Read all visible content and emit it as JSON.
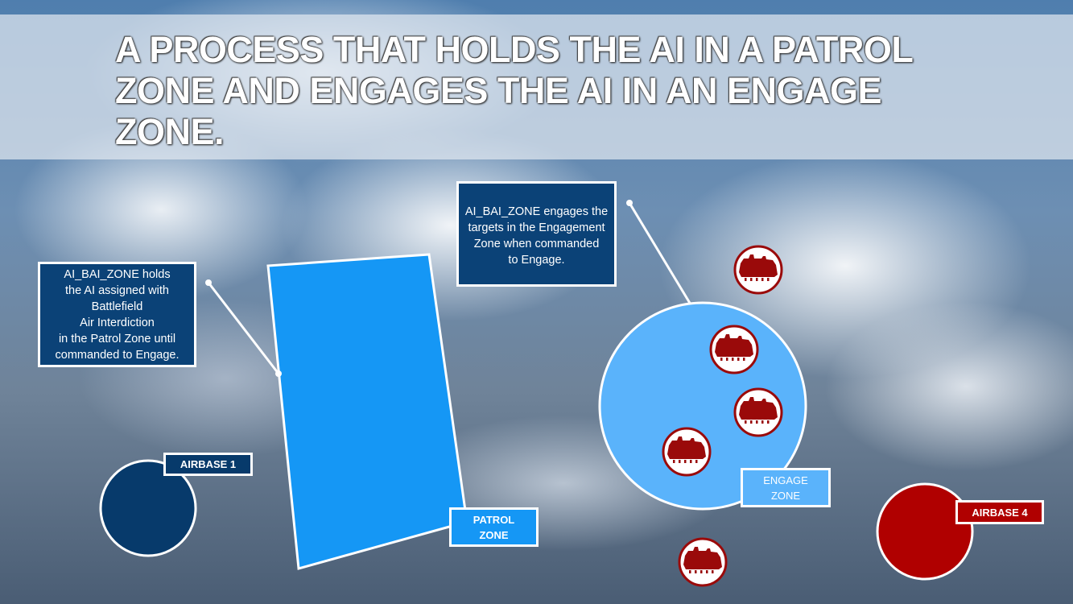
{
  "title": "A PROCESS THAT HOLDS THE AI IN A PATROL ZONE AND ENGAGES THE AI IN AN ENGAGE ZONE.",
  "callouts": {
    "patrol": "AI_BAI_ZONE holds the AI assigned with Battlefield Air Interdiction in the Patrol Zone until commanded to Engage.",
    "patrol_lines": [
      "AI_BAI_ZONE holds",
      "the AI assigned with",
      "Battlefield",
      "Air Interdiction",
      "in the Patrol Zone until",
      "commanded to Engage."
    ],
    "engage_lines": [
      "AI_BAI_ZONE engages the",
      "targets in the Engagement",
      "Zone when commanded",
      "to Engage."
    ]
  },
  "labels": {
    "airbase1": "AIRBASE 1",
    "patrol_zone": [
      "PATROL",
      "ZONE"
    ],
    "engage_zone": [
      "ENGAGE",
      "ZONE"
    ],
    "airbase4": "AIRBASE 4"
  },
  "colors": {
    "airbase1": "#073a6b",
    "patrol_zone": "#1597f5",
    "engage_zone": "#5ab3fb",
    "airbase4": "#b00000",
    "target": "#9a0a0a",
    "callout": "#0b4277"
  },
  "icons": {
    "target": "armored-vehicle-icon"
  }
}
